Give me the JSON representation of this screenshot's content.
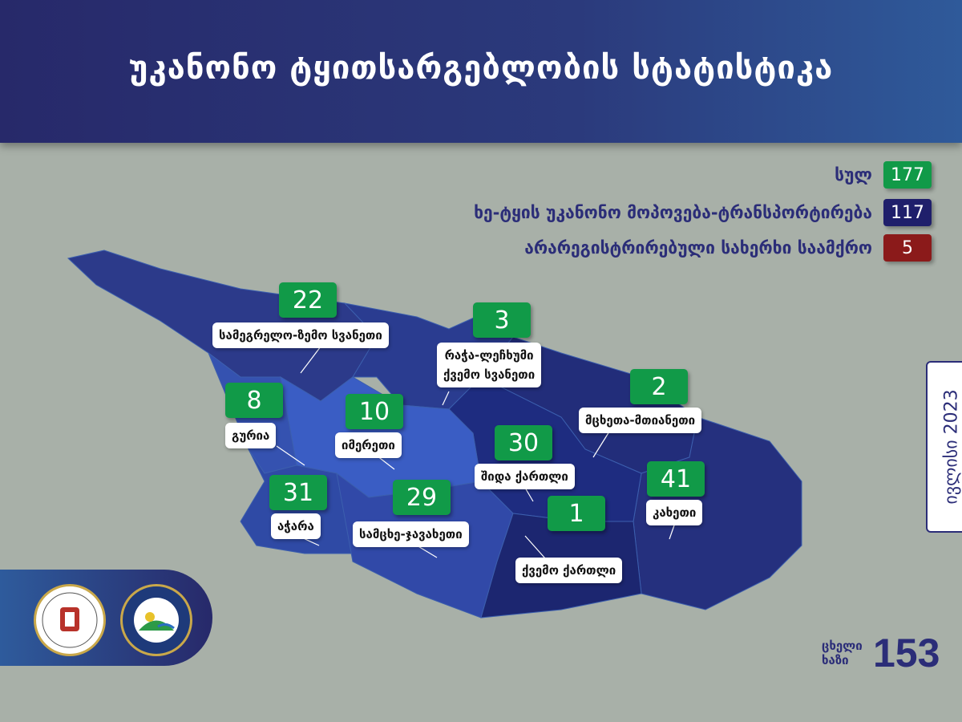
{
  "header": {
    "title": "უკანონო ტყითსარგებლობის სტატისტიკა"
  },
  "legend": [
    {
      "label": "სულ",
      "value": "177",
      "color": "#119a48"
    },
    {
      "label": "ხე-ტყის უკანონო  მოპოვება-ტრანსპორტირება",
      "value": "117",
      "color": "#1f1f6b"
    },
    {
      "label": "არარეგისტრირებული სახერხი საამქრო",
      "value": "5",
      "color": "#8b1a1a"
    }
  ],
  "regions": [
    {
      "name": "სამეგრელო-ზემო სვანეთი",
      "value": "22"
    },
    {
      "name": "რაჭა-ლეჩხუმი ქვემო სვანეთი",
      "line1": "რაჭა-ლეჩხუმი",
      "line2": "ქვემო სვანეთი",
      "value": "3"
    },
    {
      "name": "მცხეთა-მთიანეთი",
      "value": "2"
    },
    {
      "name": "გურია",
      "value": "8"
    },
    {
      "name": "იმერეთი",
      "value": "10"
    },
    {
      "name": "შიდა ქართლი",
      "value": "30"
    },
    {
      "name": "კახეთი",
      "value": "41"
    },
    {
      "name": "აჭარა",
      "value": "31"
    },
    {
      "name": "სამცხე-ჯავახეთი",
      "value": "29"
    },
    {
      "name": "ქვემო ქართლი",
      "value": "1"
    }
  ],
  "date": "ივლისი 2023",
  "hotline": {
    "label": "ცხელი ხაზი",
    "number": "153"
  },
  "logos": [
    "Ministry of Environmental Protection and Agriculture of Georgia",
    "Forestry agency emblem"
  ]
}
